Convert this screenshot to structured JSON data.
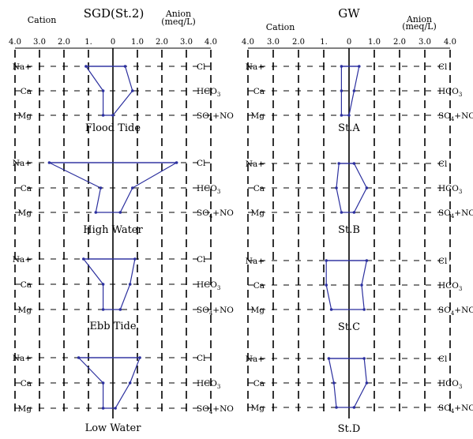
{
  "chart_data": {
    "type": "stiff-diagram",
    "units": "meq/L",
    "axis": {
      "tick_labels": [
        "4.0",
        "3.0",
        "2.0",
        "1.",
        "0",
        "1.0",
        "2.0",
        "3.0",
        "4.0"
      ],
      "cation_ions": [
        "Na+",
        "Ca",
        "Mg"
      ],
      "anion_ions": [
        {
          "base": "Cl",
          "sub": ""
        },
        {
          "base": "HCO",
          "sub": "3"
        },
        {
          "base": "SO",
          "sub": "4",
          "rest": "+NO"
        }
      ]
    },
    "panels": [
      {
        "title": "SGD(St.2)",
        "cation_label": "Cation",
        "anion_label": "Anion",
        "unit_label": "(meq/L)",
        "diagrams": [
          {
            "name": "Flood Tide",
            "cations": [
              1.1,
              0.4,
              0.4
            ],
            "anions": [
              0.5,
              0.8,
              0.0
            ]
          },
          {
            "name": "High Water",
            "cations": [
              2.6,
              0.5,
              0.7
            ],
            "anions": [
              2.6,
              0.8,
              0.3
            ]
          },
          {
            "name": "Ebb Tide",
            "cations": [
              1.2,
              0.4,
              0.4
            ],
            "anions": [
              0.9,
              0.7,
              0.3
            ]
          },
          {
            "name": "Low Water",
            "cations": [
              1.4,
              0.4,
              0.4
            ],
            "anions": [
              1.1,
              0.7,
              0.1
            ]
          }
        ]
      },
      {
        "title": "GW",
        "cation_label": "Cation",
        "anion_label": "Anion",
        "unit_label": "(meq/L)",
        "diagrams": [
          {
            "name": "St.A",
            "cations": [
              0.3,
              0.3,
              0.3
            ],
            "anions": [
              0.4,
              0.2,
              0.0
            ]
          },
          {
            "name": "St.B",
            "cations": [
              0.4,
              0.5,
              0.3
            ],
            "anions": [
              0.2,
              0.7,
              0.2
            ]
          },
          {
            "name": "St.C",
            "cations": [
              0.9,
              0.9,
              0.7
            ],
            "anions": [
              0.7,
              0.5,
              0.6
            ]
          },
          {
            "name": "St.D",
            "cations": [
              0.8,
              0.6,
              0.5
            ],
            "anions": [
              0.6,
              0.7,
              0.2
            ]
          }
        ]
      }
    ]
  }
}
